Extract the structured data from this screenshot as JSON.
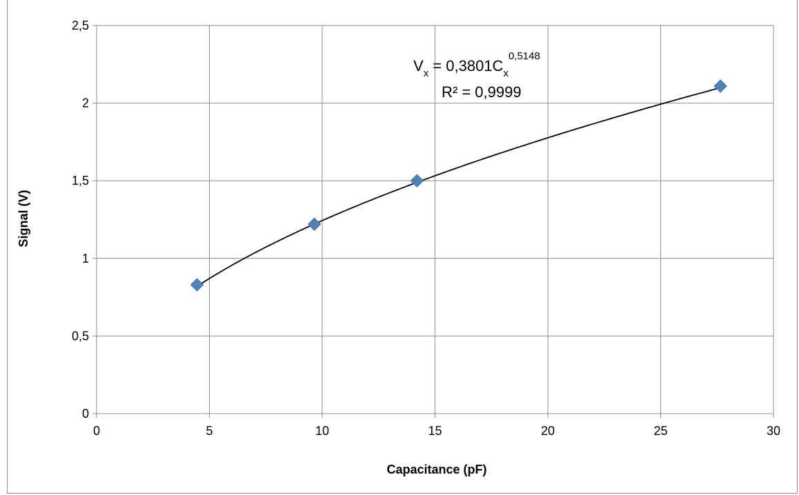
{
  "chart_data": {
    "type": "scatter",
    "title": "",
    "xlabel": "Capacitance (pF)",
    "ylabel": "Signal (V)",
    "xlim": [
      0,
      30
    ],
    "ylim": [
      0,
      2.5
    ],
    "x_ticks": [
      "0",
      "5",
      "10",
      "15",
      "20",
      "25",
      "30"
    ],
    "y_ticks": [
      "0",
      "0,5",
      "1",
      "1,5",
      "2",
      "2,5"
    ],
    "grid": true,
    "legend": "none",
    "series": [
      {
        "x": [
          4.45,
          9.65,
          14.2,
          27.65
        ],
        "y": [
          0.83,
          1.22,
          1.5,
          2.11
        ],
        "marker": "diamond",
        "color": "#4f81bd"
      }
    ],
    "trendline": {
      "type": "power",
      "coefficient": 0.3801,
      "exponent": 0.5148,
      "x_range": [
        4.45,
        27.65
      ],
      "color": "#000000"
    },
    "annotation": {
      "eq_v": "V",
      "eq_v_sub": "x",
      "eq_mid": " = 0,3801C",
      "eq_c_sub": "x",
      "eq_exp": "0,5148",
      "r2": "R² = 0,9999"
    }
  }
}
